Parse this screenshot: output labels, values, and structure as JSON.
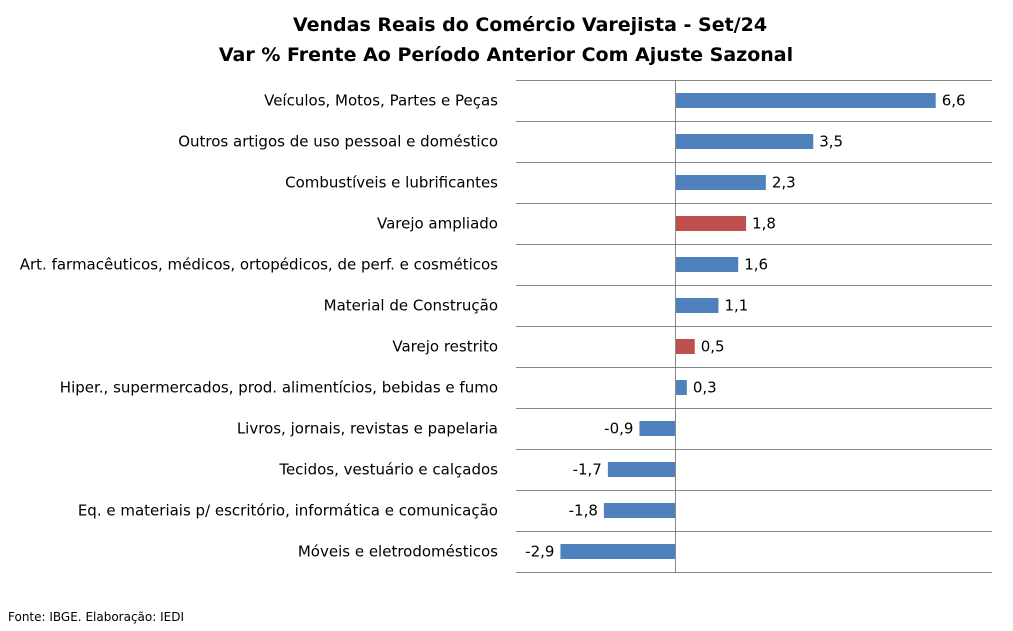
{
  "chart_data": {
    "type": "bar",
    "orientation": "horizontal",
    "title": "Vendas Reais do Comércio Varejista - Set/24",
    "subtitle": "Var % Frente Ao Período Anterior Com Ajuste Sazonal",
    "xlabel": "",
    "ylabel": "",
    "grid": "horizontal separators",
    "legend": "none",
    "xlim": [
      -3.6,
      7.4
    ],
    "categories": [
      "Veículos, Motos, Partes e Peças",
      "Outros artigos de uso pessoal e doméstico",
      "Combustíveis e lubrificantes",
      "Varejo ampliado",
      "Art. farmacêuticos, médicos, ortopédicos, de perf. e cosméticos",
      "Material de Construção",
      "Varejo restrito",
      "Hiper., supermercados, prod. alimentícios, bebidas e fumo",
      "Livros, jornais, revistas e papelaria",
      "Tecidos, vestuário e calçados",
      "Eq. e materiais p/ escritório, informática e comunicação",
      "Móveis e eletrodomésticos"
    ],
    "values": [
      6.6,
      3.5,
      2.3,
      1.8,
      1.6,
      1.1,
      0.5,
      0.3,
      -0.9,
      -1.7,
      -1.8,
      -2.9
    ],
    "value_labels": [
      "6,6",
      "3,5",
      "2,3",
      "1,8",
      "1,6",
      "1,1",
      "0,5",
      "0,3",
      "-0,9",
      "-1,7",
      "-1,8",
      "-2,9"
    ],
    "highlight": [
      false,
      false,
      false,
      true,
      false,
      false,
      true,
      false,
      false,
      false,
      false,
      false
    ],
    "colors": {
      "default_bar": "#4F81BD",
      "highlight_bar": "#C0504D",
      "grid": "#868686",
      "axis": "#868686"
    }
  },
  "source": "Fonte: IBGE. Elaboração: IEDI"
}
